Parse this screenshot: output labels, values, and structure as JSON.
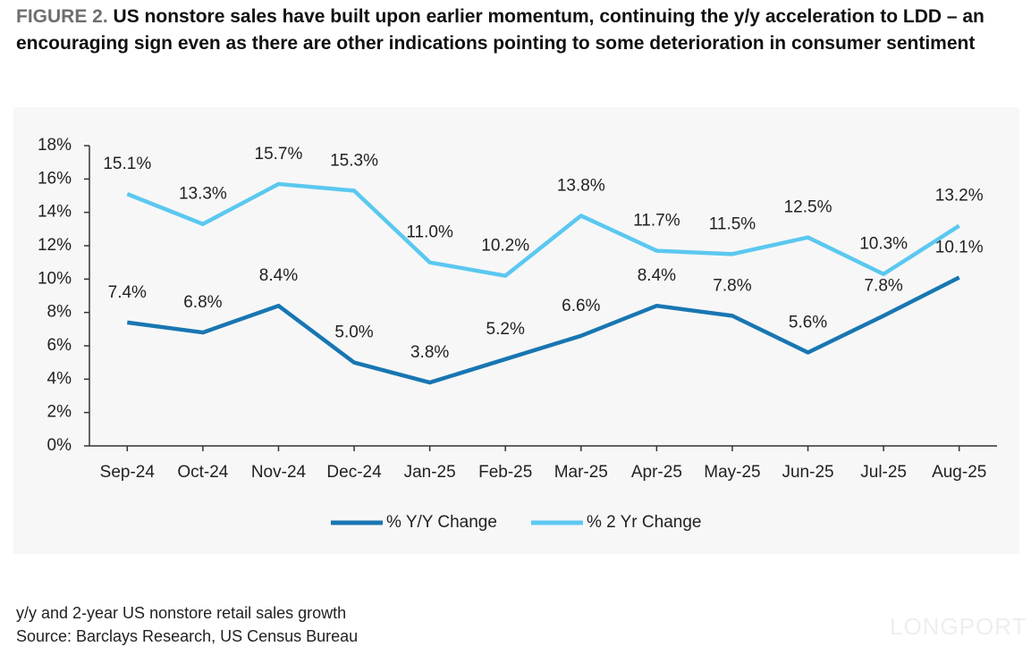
{
  "figure_label": "FIGURE 2.",
  "chart_data": {
    "type": "line",
    "title": "US nonstore sales have built upon earlier momentum, continuing the y/y acceleration to LDD – an encouraging sign even as there are other indications pointing to some deterioration in consumer sentiment",
    "categories": [
      "Sep-24",
      "Oct-24",
      "Nov-24",
      "Dec-24",
      "Jan-25",
      "Feb-25",
      "Mar-25",
      "Apr-25",
      "May-25",
      "Jun-25",
      "Jul-25",
      "Aug-25"
    ],
    "series": [
      {
        "name": "% Y/Y Change",
        "color": "#1876b2",
        "values": [
          7.4,
          6.8,
          8.4,
          5.0,
          3.8,
          5.2,
          6.6,
          8.4,
          7.8,
          5.6,
          7.8,
          10.1
        ],
        "value_labels": [
          "7.4%",
          "6.8%",
          "8.4%",
          "5.0%",
          "3.8%",
          "5.2%",
          "6.6%",
          "8.4%",
          "7.8%",
          "5.6%",
          "7.8%",
          "10.1%"
        ]
      },
      {
        "name": "% 2 Yr Change",
        "color": "#5bc8f0",
        "values": [
          15.1,
          13.3,
          15.7,
          15.3,
          11.0,
          10.2,
          13.8,
          11.7,
          11.5,
          12.5,
          10.3,
          13.2
        ],
        "value_labels": [
          "15.1%",
          "13.3%",
          "15.7%",
          "15.3%",
          "11.0%",
          "10.2%",
          "13.8%",
          "11.7%",
          "11.5%",
          "12.5%",
          "10.3%",
          "13.2%"
        ]
      }
    ],
    "ylim": [
      0,
      18
    ],
    "yticks": [
      {
        "value": 0,
        "label": "0%"
      },
      {
        "value": 2,
        "label": "2%"
      },
      {
        "value": 4,
        "label": "4%"
      },
      {
        "value": 6,
        "label": "6%"
      },
      {
        "value": 8,
        "label": "8%"
      },
      {
        "value": 10,
        "label": "10%"
      },
      {
        "value": 12,
        "label": "12%"
      },
      {
        "value": 14,
        "label": "14%"
      },
      {
        "value": 16,
        "label": "16%"
      },
      {
        "value": 18,
        "label": "18%"
      }
    ],
    "grid": false,
    "legend": "bottom"
  },
  "notes": [
    "y/y and 2-year US nonstore retail sales growth",
    "Source: Barclays Research, US Census Bureau"
  ],
  "watermark": "LONGPORT"
}
